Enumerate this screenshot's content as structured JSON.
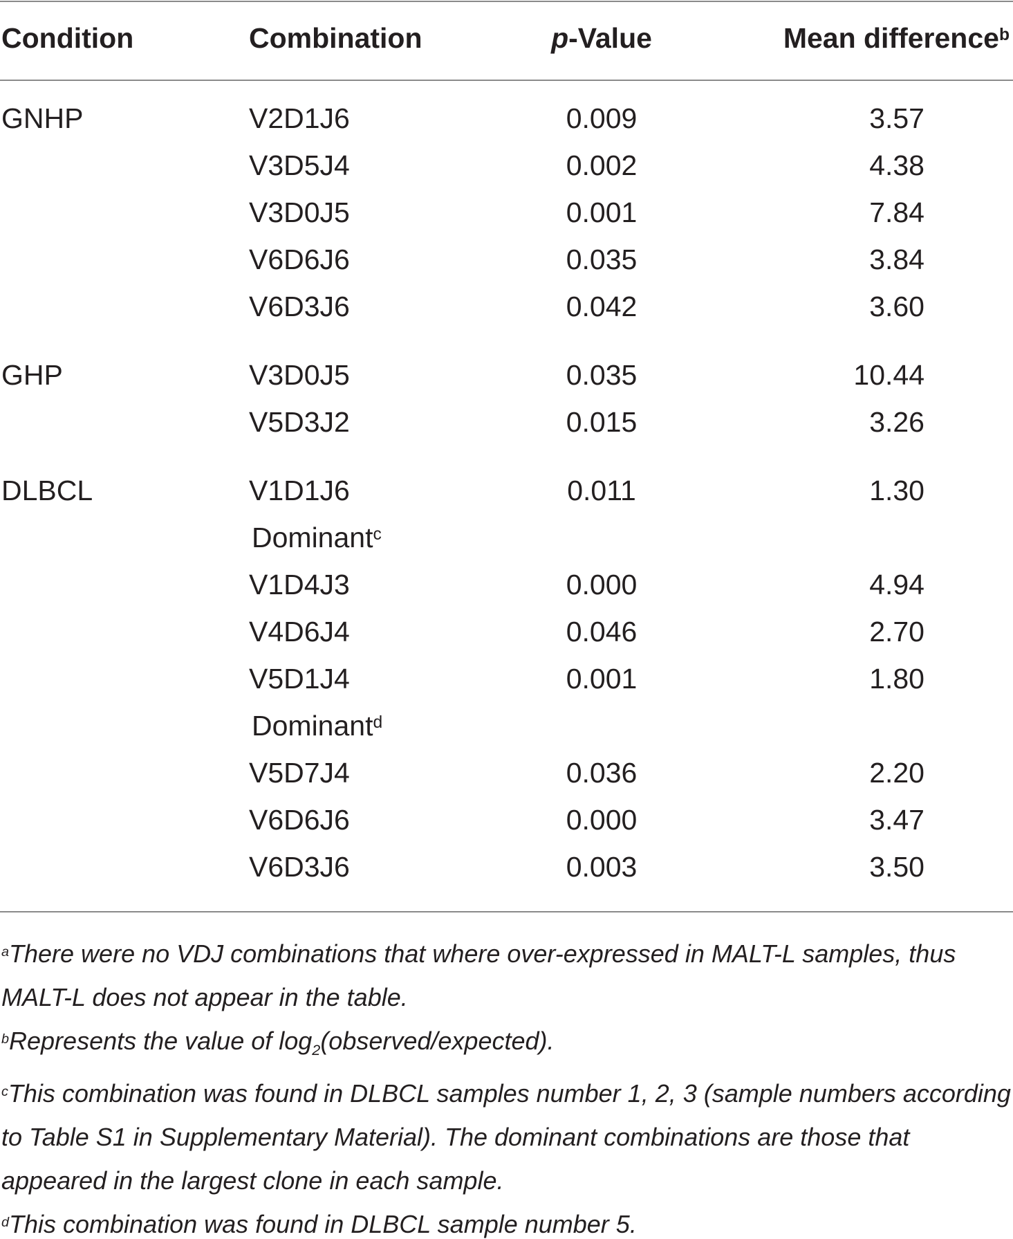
{
  "header": {
    "condition": "Condition",
    "combination": "Combination",
    "p_value": {
      "italic": "p",
      "rest": "-Value"
    },
    "mean_difference": {
      "text": "Mean difference",
      "sup": "b"
    }
  },
  "groups": [
    {
      "condition": "GNHP",
      "rows": [
        {
          "combination": "V2D1J6",
          "p_value": "0.009",
          "mean_difference": "3.57"
        },
        {
          "combination": "V3D5J4",
          "p_value": "0.002",
          "mean_difference": "4.38"
        },
        {
          "combination": "V3D0J5",
          "p_value": "0.001",
          "mean_difference": "7.84"
        },
        {
          "combination": "V6D6J6",
          "p_value": "0.035",
          "mean_difference": "3.84"
        },
        {
          "combination": "V6D3J6",
          "p_value": "0.042",
          "mean_difference": "3.60"
        }
      ]
    },
    {
      "condition": "GHP",
      "rows": [
        {
          "combination": "V3D0J5",
          "p_value": "0.035",
          "mean_difference": "10.44"
        },
        {
          "combination": "V5D3J2",
          "p_value": "0.015",
          "mean_difference": "3.26"
        }
      ]
    },
    {
      "condition": "DLBCL",
      "rows": [
        {
          "combination": "V1D1J6",
          "p_value": "0.011",
          "mean_difference": "1.30"
        },
        {
          "note": {
            "text": "Dominant",
            "sup": "c"
          }
        },
        {
          "combination": "V1D4J3",
          "p_value": "0.000",
          "mean_difference": "4.94"
        },
        {
          "combination": "V4D6J4",
          "p_value": "0.046",
          "mean_difference": "2.70"
        },
        {
          "combination": "V5D1J4",
          "p_value": "0.001",
          "mean_difference": "1.80"
        },
        {
          "note": {
            "text": "Dominant",
            "sup": "d"
          }
        },
        {
          "combination": "V5D7J4",
          "p_value": "0.036",
          "mean_difference": "2.20"
        },
        {
          "combination": "V6D6J6",
          "p_value": "0.000",
          "mean_difference": "3.47"
        },
        {
          "combination": "V6D3J6",
          "p_value": "0.003",
          "mean_difference": "3.50"
        }
      ]
    }
  ],
  "footnotes": [
    {
      "mark": "a",
      "text": "There were no VDJ combinations that where over-expressed in MALT-L samples, thus MALT-L does not appear in the table."
    },
    {
      "mark": "b",
      "text": "Represents the value of log",
      "sub": "2",
      "after": "(observed/expected)."
    },
    {
      "mark": "c",
      "text": "This combination was found in DLBCL samples number 1, 2, 3 (sample numbers according to Table S1 in Supplementary Material). The dominant combinations are those that appeared in the largest clone in each sample."
    },
    {
      "mark": "d",
      "text": "This combination was found in DLBCL sample number 5."
    }
  ]
}
